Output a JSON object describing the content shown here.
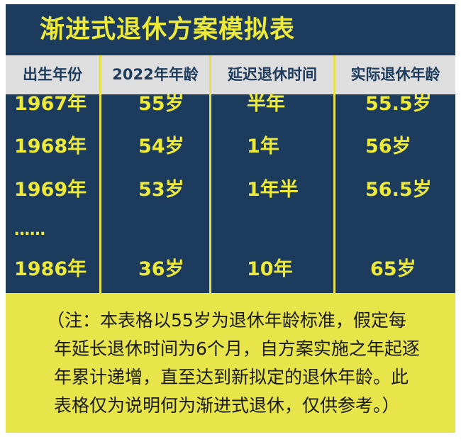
{
  "title": "渐进式退休方案模拟表",
  "colors": {
    "background": "#1d3b5c",
    "accent_yellow": "#eeea3a",
    "header_gray": "#dedede",
    "note_background": "#e8e54a"
  },
  "table": {
    "headers": [
      "出生年份",
      "2022年年龄",
      "延迟退休时间",
      "实际退休年龄"
    ],
    "rows": [
      [
        "1967年",
        "55岁",
        "半年",
        "55.5岁"
      ],
      [
        "1968年",
        "54岁",
        "1年",
        "56岁"
      ],
      [
        "1969年",
        "53岁",
        "1年半",
        "56.5岁"
      ],
      [
        "……",
        "",
        "",
        ""
      ],
      [
        "1986年",
        "36岁",
        "10年",
        "65岁"
      ]
    ]
  },
  "note": {
    "lines": [
      "（注：本表格以55岁为退休年龄标准，假定每",
      "年延长退休时间为6个月，自方案实施之年起逐",
      "年累计递增，直至达到新拟定的退休年龄。此",
      "表格仅为说明何为渐进式退休，仅供参考。）"
    ]
  }
}
